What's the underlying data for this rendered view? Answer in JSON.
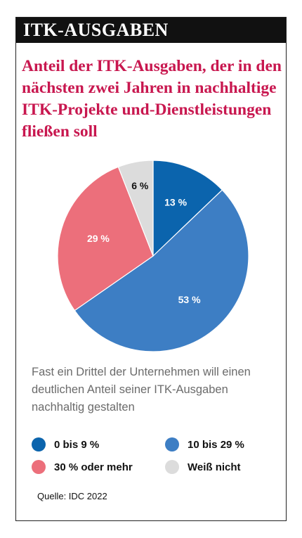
{
  "header": {
    "title": "ITK-AUSGABEN"
  },
  "headline": "Anteil der ITK-Ausgaben, der in den nächsten zwei Jahren in nachhaltige ITK-Projekte und-Dienstleistungen fließen soll",
  "caption": "Fast ein Drittel der Unternehmen will einen deutlichen Anteil seiner ITK-Aus­gaben nachhaltig gestalten",
  "source": "Quelle: IDC 2022",
  "chart_data": {
    "type": "pie",
    "title": "",
    "slices": [
      {
        "name": "0 bis 9 %",
        "value": 13,
        "label": "13 %",
        "color": "#0b64ad",
        "label_color": "#ffffff"
      },
      {
        "name": "10 bis 29 %",
        "value": 53,
        "label": "53 %",
        "color": "#3d7ec4",
        "label_color": "#ffffff"
      },
      {
        "name": "30 % oder mehr",
        "value": 29,
        "label": "29 %",
        "color": "#ec6f7b",
        "label_color": "#ffffff"
      },
      {
        "name": "Weiß nicht",
        "value": 6,
        "label": "6 %",
        "color": "#dcdcdc",
        "label_color": "#111111"
      }
    ],
    "start_angle_deg": 0,
    "direction": "clockwise",
    "legend_position": "bottom"
  }
}
